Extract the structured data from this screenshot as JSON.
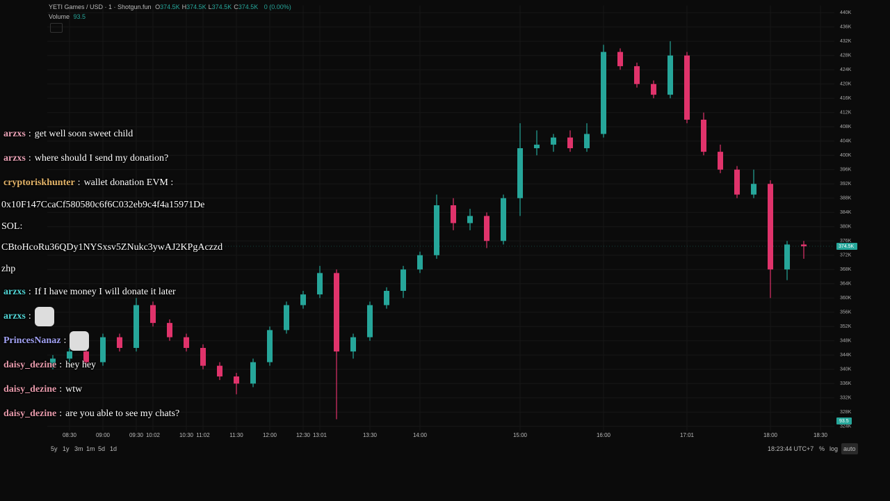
{
  "header": {
    "title": "YETI Games / USD · 1 · Shotgun.fun",
    "ohlc": [
      {
        "key": "O",
        "value": "374.5K"
      },
      {
        "key": "H",
        "value": "374.5K"
      },
      {
        "key": "L",
        "value": "374.5K"
      },
      {
        "key": "C",
        "value": "374.5K"
      }
    ],
    "change": "0 (0.00%)",
    "volume_label": "Volume",
    "volume_value": "93.5"
  },
  "chart_data": {
    "type": "candlestick",
    "up_color": "#26a69a",
    "down_color": "#e0336b",
    "grid": true,
    "categories": [
      null,
      "08:30",
      null,
      "09:00",
      null,
      "09:30",
      "10:02",
      null,
      "10:30",
      "11:02",
      null,
      "11:30",
      null,
      "12:00",
      null,
      "12:30",
      "13:01",
      null,
      null,
      "13:30",
      null,
      null,
      "14:00",
      null,
      null,
      null,
      null,
      null,
      "15:00",
      null,
      null,
      null,
      null,
      "16:00",
      null,
      null,
      null,
      null,
      "17:01",
      null,
      null,
      null,
      null,
      "18:00",
      null,
      null,
      "18:30"
    ],
    "open": [
      341000,
      343000,
      345000,
      342000,
      349000,
      346000,
      358000,
      353000,
      349000,
      346000,
      341000,
      338000,
      336000,
      342000,
      351000,
      358000,
      361000,
      367000,
      345000,
      349000,
      358000,
      362000,
      368000,
      372000,
      386000,
      381000,
      383000,
      376000,
      388000,
      402000,
      403000,
      405000,
      402000,
      406000,
      429000,
      425000,
      420000,
      417000,
      428000,
      410000,
      401000,
      396000,
      389000,
      392000,
      368000,
      375000,
      null
    ],
    "high": [
      344000,
      346000,
      346000,
      350000,
      350000,
      360000,
      359000,
      354000,
      350000,
      347000,
      342000,
      339000,
      343000,
      352000,
      359000,
      362000,
      369000,
      368000,
      350000,
      359000,
      363000,
      369000,
      373000,
      389000,
      388000,
      385000,
      384000,
      389000,
      409000,
      407000,
      406000,
      407000,
      409000,
      431000,
      430000,
      426000,
      421000,
      432000,
      429000,
      412000,
      403000,
      397000,
      396000,
      393000,
      376000,
      376000,
      null
    ],
    "low": [
      340000,
      342000,
      341000,
      341000,
      345000,
      345000,
      352000,
      348000,
      345000,
      340000,
      337000,
      333000,
      335000,
      341000,
      350000,
      357000,
      360000,
      326000,
      343000,
      348000,
      357000,
      360000,
      367000,
      371000,
      379000,
      379000,
      374000,
      375000,
      383000,
      400000,
      401000,
      401000,
      401000,
      405000,
      424000,
      419000,
      416000,
      416000,
      409000,
      400000,
      395000,
      388000,
      388000,
      360000,
      365000,
      371000,
      null
    ],
    "close": [
      343000,
      345000,
      342000,
      349000,
      346000,
      358000,
      353000,
      349000,
      346000,
      341000,
      338000,
      336000,
      342000,
      351000,
      358000,
      361000,
      367000,
      345000,
      349000,
      358000,
      362000,
      368000,
      372000,
      386000,
      381000,
      383000,
      376000,
      388000,
      402000,
      403000,
      405000,
      402000,
      406000,
      429000,
      425000,
      420000,
      417000,
      428000,
      410000,
      401000,
      396000,
      389000,
      392000,
      368000,
      375000,
      374500,
      null
    ],
    "ylim": [
      322000,
      442000
    ],
    "yticks": [
      {
        "value": 324000,
        "label": "324K"
      },
      {
        "value": 328000,
        "label": "328K"
      },
      {
        "value": 332000,
        "label": "332K"
      },
      {
        "value": 336000,
        "label": "336K"
      },
      {
        "value": 340000,
        "label": "340K"
      },
      {
        "value": 344000,
        "label": "344K"
      },
      {
        "value": 348000,
        "label": "348K"
      },
      {
        "value": 352000,
        "label": "352K"
      },
      {
        "value": 356000,
        "label": "356K"
      },
      {
        "value": 360000,
        "label": "360K"
      },
      {
        "value": 364000,
        "label": "364K"
      },
      {
        "value": 368000,
        "label": "368K"
      },
      {
        "value": 372000,
        "label": "372K"
      },
      {
        "value": 376000,
        "label": "376K"
      },
      {
        "value": 380000,
        "label": "380K"
      },
      {
        "value": 384000,
        "label": "384K"
      },
      {
        "value": 388000,
        "label": "388K"
      },
      {
        "value": 392000,
        "label": "392K"
      },
      {
        "value": 396000,
        "label": "396K"
      },
      {
        "value": 400000,
        "label": "400K"
      },
      {
        "value": 404000,
        "label": "404K"
      },
      {
        "value": 408000,
        "label": "408K"
      },
      {
        "value": 412000,
        "label": "412K"
      },
      {
        "value": 416000,
        "label": "416K"
      },
      {
        "value": 420000,
        "label": "420K"
      },
      {
        "value": 424000,
        "label": "424K"
      },
      {
        "value": 428000,
        "label": "428K"
      },
      {
        "value": 432000,
        "label": "432K"
      },
      {
        "value": 436000,
        "label": "436K"
      },
      {
        "value": 440000,
        "label": "440K"
      }
    ],
    "last_price": {
      "value": 374500,
      "label": "374.5K"
    }
  },
  "chat": {
    "separator": ":",
    "messages": [
      {
        "user": "arzxs",
        "color": "#eaa2b6",
        "text": "get well soon sweet child"
      },
      {
        "user": "arzxs",
        "color": "#eaa2b6",
        "text": "where should I send my donation?"
      },
      {
        "user": "cryptoriskhunter",
        "color": "#e6b66a",
        "text": "wallet donation EVM :",
        "lines": [
          "0x10F147CcaCf580580c6f6C032eb9c4f4a15971De",
          "SOL:",
          "CBtoHcoRu36QDy1NYSxsv5ZNukc3ywAJ2KPgAczzd",
          "zhp"
        ]
      },
      {
        "user": "arzxs",
        "color": "#52d6d6",
        "text": "If I have money I will donate it later"
      },
      {
        "user": "arzxs",
        "color": "#52d6d6"
      },
      {
        "user": "PrincesNanaz",
        "color": "#a3a3f5"
      },
      {
        "user": "daisy_dezine",
        "color": "#e79aab",
        "text": "hey hey"
      },
      {
        "user": "daisy_dezine",
        "color": "#e79aab",
        "text": "wtw"
      },
      {
        "user": "daisy_dezine",
        "color": "#e79aab",
        "text": "are you able to see my chats?"
      }
    ]
  },
  "toolbar": {
    "ranges": [
      "5y",
      "1y",
      "3m",
      "1m",
      "5d",
      "1d"
    ],
    "clock": "18:23:44 UTC+7",
    "percent": "%",
    "log": "log",
    "auto": "auto"
  }
}
